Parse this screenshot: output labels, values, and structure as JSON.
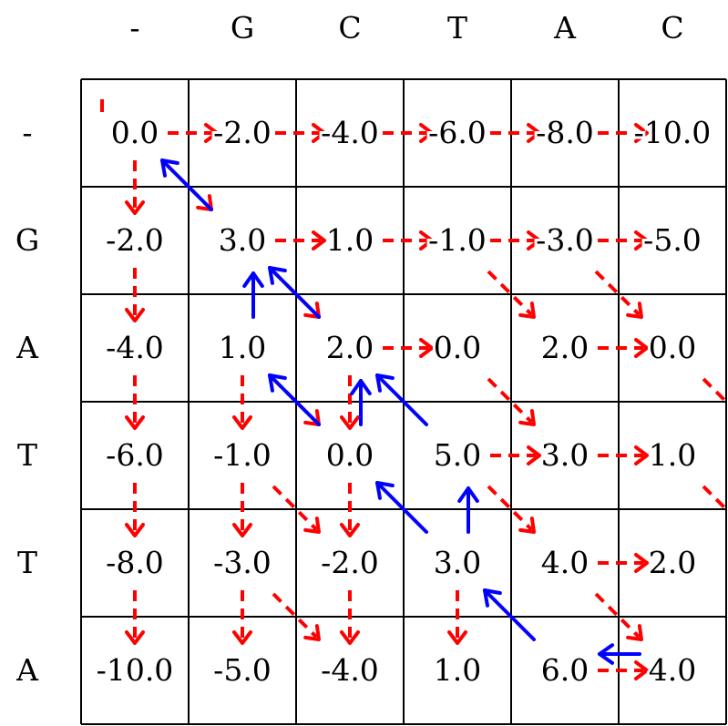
{
  "matrix": {
    "columns": [
      "-",
      "G",
      "C",
      "T",
      "A",
      "C"
    ],
    "rows": [
      "-",
      "G",
      "A",
      "T",
      "T",
      "A"
    ],
    "values": [
      [
        "0.0",
        "-2.0",
        "-4.0",
        "-6.0",
        "-8.0",
        "-10.0"
      ],
      [
        "-2.0",
        "3.0",
        "1.0",
        "-1.0",
        "-3.0",
        "-5.0"
      ],
      [
        "-4.0",
        "1.0",
        "2.0",
        "0.0",
        "2.0",
        "0.0"
      ],
      [
        "-6.0",
        "-1.0",
        "0.0",
        "5.0",
        "3.0",
        "1.0"
      ],
      [
        "-8.0",
        "-3.0",
        "-2.0",
        "3.0",
        "4.0",
        "2.0"
      ],
      [
        "-10.0",
        "-5.0",
        "-4.0",
        "1.0",
        "6.0",
        "4.0"
      ]
    ]
  },
  "arrows": {
    "red_right": [
      [
        0,
        0
      ],
      [
        0,
        1
      ],
      [
        0,
        2
      ],
      [
        0,
        3
      ],
      [
        0,
        4
      ],
      [
        1,
        1
      ],
      [
        1,
        2
      ],
      [
        1,
        3
      ],
      [
        1,
        4
      ],
      [
        2,
        2
      ],
      [
        2,
        4
      ],
      [
        3,
        3
      ],
      [
        3,
        4
      ],
      [
        4,
        4
      ],
      [
        5,
        4
      ]
    ],
    "red_down": [
      [
        0,
        0
      ],
      [
        1,
        0
      ],
      [
        2,
        0
      ],
      [
        3,
        0
      ],
      [
        4,
        0
      ],
      [
        2,
        1
      ],
      [
        3,
        1
      ],
      [
        4,
        1
      ],
      [
        2,
        2
      ],
      [
        3,
        2
      ],
      [
        4,
        2
      ],
      [
        4,
        3
      ]
    ],
    "red_diag": [
      [
        0,
        0
      ],
      [
        1,
        1
      ],
      [
        1,
        3
      ],
      [
        1,
        4
      ],
      [
        2,
        1
      ],
      [
        2,
        3
      ],
      [
        2,
        5
      ],
      [
        3,
        1
      ],
      [
        3,
        3
      ],
      [
        3,
        5
      ],
      [
        4,
        1
      ],
      [
        4,
        4
      ]
    ],
    "blue_diag": [
      [
        1,
        1
      ],
      [
        2,
        2
      ],
      [
        3,
        2
      ],
      [
        3,
        3
      ],
      [
        4,
        3
      ],
      [
        5,
        4
      ]
    ],
    "blue_up": [
      [
        2,
        1
      ],
      [
        3,
        2
      ],
      [
        4,
        3
      ]
    ],
    "blue_left": [
      [
        5,
        5
      ]
    ]
  },
  "colors": {
    "forward_arrow": "#ff0000",
    "traceback_arrow": "#0000ff"
  }
}
